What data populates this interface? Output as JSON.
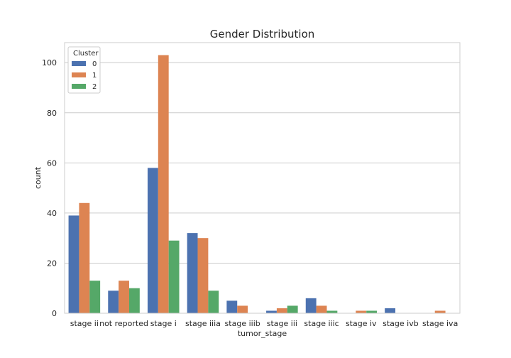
{
  "chart_data": {
    "type": "bar",
    "title": "Gender Distribution",
    "xlabel": "tumor_stage",
    "ylabel": "count",
    "categories": [
      "stage ii",
      "not reported",
      "stage i",
      "stage iiia",
      "stage iiib",
      "stage iii",
      "stage iiic",
      "stage iv",
      "stage ivb",
      "stage iva"
    ],
    "series": [
      {
        "name": "0",
        "color": "#4c72b0",
        "values": [
          39,
          9,
          58,
          32,
          5,
          1,
          6,
          0,
          2,
          0
        ]
      },
      {
        "name": "1",
        "color": "#dd8452",
        "values": [
          44,
          13,
          103,
          30,
          3,
          2,
          3,
          1,
          0,
          1
        ]
      },
      {
        "name": "2",
        "color": "#55a868",
        "values": [
          13,
          10,
          29,
          9,
          0,
          3,
          1,
          1,
          0,
          0
        ]
      }
    ],
    "ylim": [
      0,
      108
    ],
    "yticks": [
      0,
      20,
      40,
      60,
      80,
      100
    ],
    "grid": true,
    "legend": {
      "title": "Cluster",
      "placement": "top-left"
    }
  }
}
